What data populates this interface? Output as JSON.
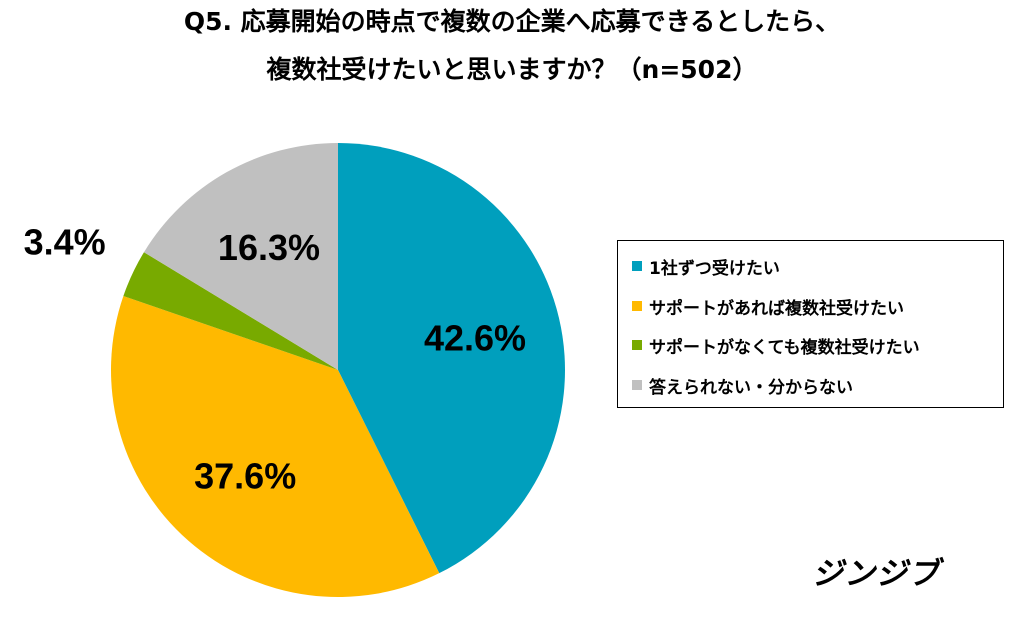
{
  "title": {
    "line1": "Q5. 応募開始の時点で複数の企業へ応募できるとしたら、",
    "line2": "複数社受けたいと思いますか？（n=502）"
  },
  "chart_data": {
    "type": "pie",
    "categories": [
      "1社ずつ受けたい",
      "サポートがあれば複数社受けたい",
      "サポートがなくても複数社受けたい",
      "答えられない・分からない"
    ],
    "values": [
      42.6,
      37.6,
      3.4,
      16.3
    ],
    "labels": [
      "42.6%",
      "37.6%",
      "3.4%",
      "16.3%"
    ],
    "colors": [
      "#009fbd",
      "#ffb900",
      "#78aa00",
      "#c0c0c0"
    ],
    "start": "12 o'clock",
    "direction": "clockwise",
    "legend_position": "right"
  },
  "legend": {
    "items": [
      {
        "label": "1社ずつ受けたい",
        "color": "#009fbd"
      },
      {
        "label": "サポートがあれば複数社受けたい",
        "color": "#ffb900"
      },
      {
        "label": "サポートがなくても複数社受けたい",
        "color": "#78aa00"
      },
      {
        "label": "答えられない・分からない",
        "color": "#c0c0c0"
      }
    ]
  },
  "logo": {
    "text": "ジンジブ"
  }
}
